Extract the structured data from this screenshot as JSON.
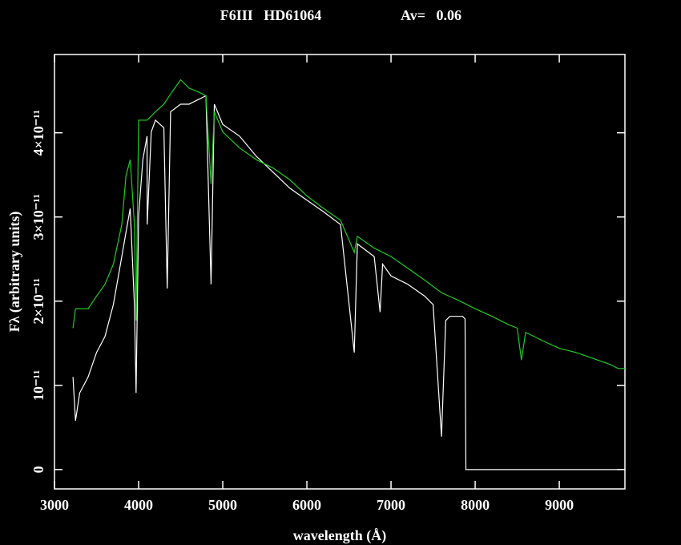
{
  "chart_data": {
    "type": "line",
    "title": "F6III   HD61064",
    "subtitle": "Av=   0.06",
    "x_label": "wavelength (Å)",
    "y_label": "Fλ (arbitrary units)",
    "xlim": [
      3000,
      9780
    ],
    "ylim": [
      -2.3e-12,
      4.93e-11
    ],
    "xticks": [
      3000,
      4000,
      5000,
      6000,
      7000,
      8000,
      9000
    ],
    "yticks": [
      0,
      {
        "value": 1e-11,
        "label": "10⁻¹¹"
      },
      {
        "value": 2e-11,
        "label": "2×10⁻¹¹"
      },
      {
        "value": 3e-11,
        "label": "3×10⁻¹¹"
      },
      {
        "value": 4e-11,
        "label": "4×10⁻¹¹"
      }
    ],
    "series": [
      {
        "color": "#ffffff",
        "x": [
          3220,
          3250,
          3300,
          3400,
          3500,
          3600,
          3700,
          3800,
          3850,
          3900,
          3950,
          3970,
          4000,
          4050,
          4100,
          4102,
          4150,
          4200,
          4300,
          4340,
          4380,
          4500,
          4600,
          4700,
          4800,
          4861,
          4900,
          5000,
          5200,
          5400,
          5600,
          5800,
          6000,
          6200,
          6400,
          6563,
          6600,
          6800,
          6870,
          6900,
          7000,
          7200,
          7400,
          7500,
          7600,
          7650,
          7700,
          7850,
          7880,
          7890,
          8000,
          9780
        ],
        "values": [
          1.1e-11,
          5.8e-12,
          9.1e-12,
          1.1e-11,
          1.39e-11,
          1.58e-11,
          1.96e-11,
          2.53e-11,
          2.82e-11,
          3.1e-11,
          1.96e-11,
          9.1e-12,
          3.01e-11,
          3.68e-11,
          3.96e-11,
          2.91e-11,
          4.01e-11,
          4.15e-11,
          4.06e-11,
          2.15e-11,
          4.25e-11,
          4.34e-11,
          4.34e-11,
          4.39e-11,
          4.44e-11,
          2.2e-11,
          4.34e-11,
          4.1e-11,
          3.96e-11,
          3.72e-11,
          3.53e-11,
          3.34e-11,
          3.2e-11,
          3.06e-11,
          2.91e-11,
          1.39e-11,
          2.68e-11,
          2.53e-11,
          1.87e-11,
          2.44e-11,
          2.3e-11,
          2.2e-11,
          2.06e-11,
          1.96e-11,
          3.9e-12,
          1.77e-11,
          1.82e-11,
          1.82e-11,
          1.79e-11,
          0,
          0,
          0
        ]
      },
      {
        "color": "#22cc22",
        "x": [
          3220,
          3250,
          3400,
          3500,
          3600,
          3700,
          3800,
          3850,
          3900,
          3950,
          3970,
          4000,
          4100,
          4200,
          4300,
          4400,
          4500,
          4600,
          4700,
          4800,
          4861,
          4900,
          5000,
          5200,
          5400,
          5600,
          5800,
          6000,
          6200,
          6400,
          6563,
          6600,
          6800,
          7000,
          7200,
          7400,
          7600,
          7800,
          8000,
          8200,
          8400,
          8500,
          8550,
          8600,
          8800,
          9000,
          9200,
          9400,
          9600,
          9700,
          9780
        ],
        "values": [
          1.68e-11,
          1.91e-11,
          1.91e-11,
          2.06e-11,
          2.2e-11,
          2.44e-11,
          2.91e-11,
          3.49e-11,
          3.68e-11,
          2.91e-11,
          1.77e-11,
          4.15e-11,
          4.15e-11,
          4.25e-11,
          4.34e-11,
          4.49e-11,
          4.63e-11,
          4.53e-11,
          4.49e-11,
          4.44e-11,
          3.39e-11,
          4.25e-11,
          4.01e-11,
          3.82e-11,
          3.68e-11,
          3.58e-11,
          3.44e-11,
          3.25e-11,
          3.1e-11,
          2.96e-11,
          2.58e-11,
          2.77e-11,
          2.63e-11,
          2.53e-11,
          2.39e-11,
          2.25e-11,
          2.1e-11,
          2.01e-11,
          1.91e-11,
          1.82e-11,
          1.72e-11,
          1.68e-11,
          1.3e-11,
          1.63e-11,
          1.53e-11,
          1.44e-11,
          1.39e-11,
          1.32e-11,
          1.25e-11,
          1.2e-11,
          1.2e-11
        ]
      }
    ]
  }
}
